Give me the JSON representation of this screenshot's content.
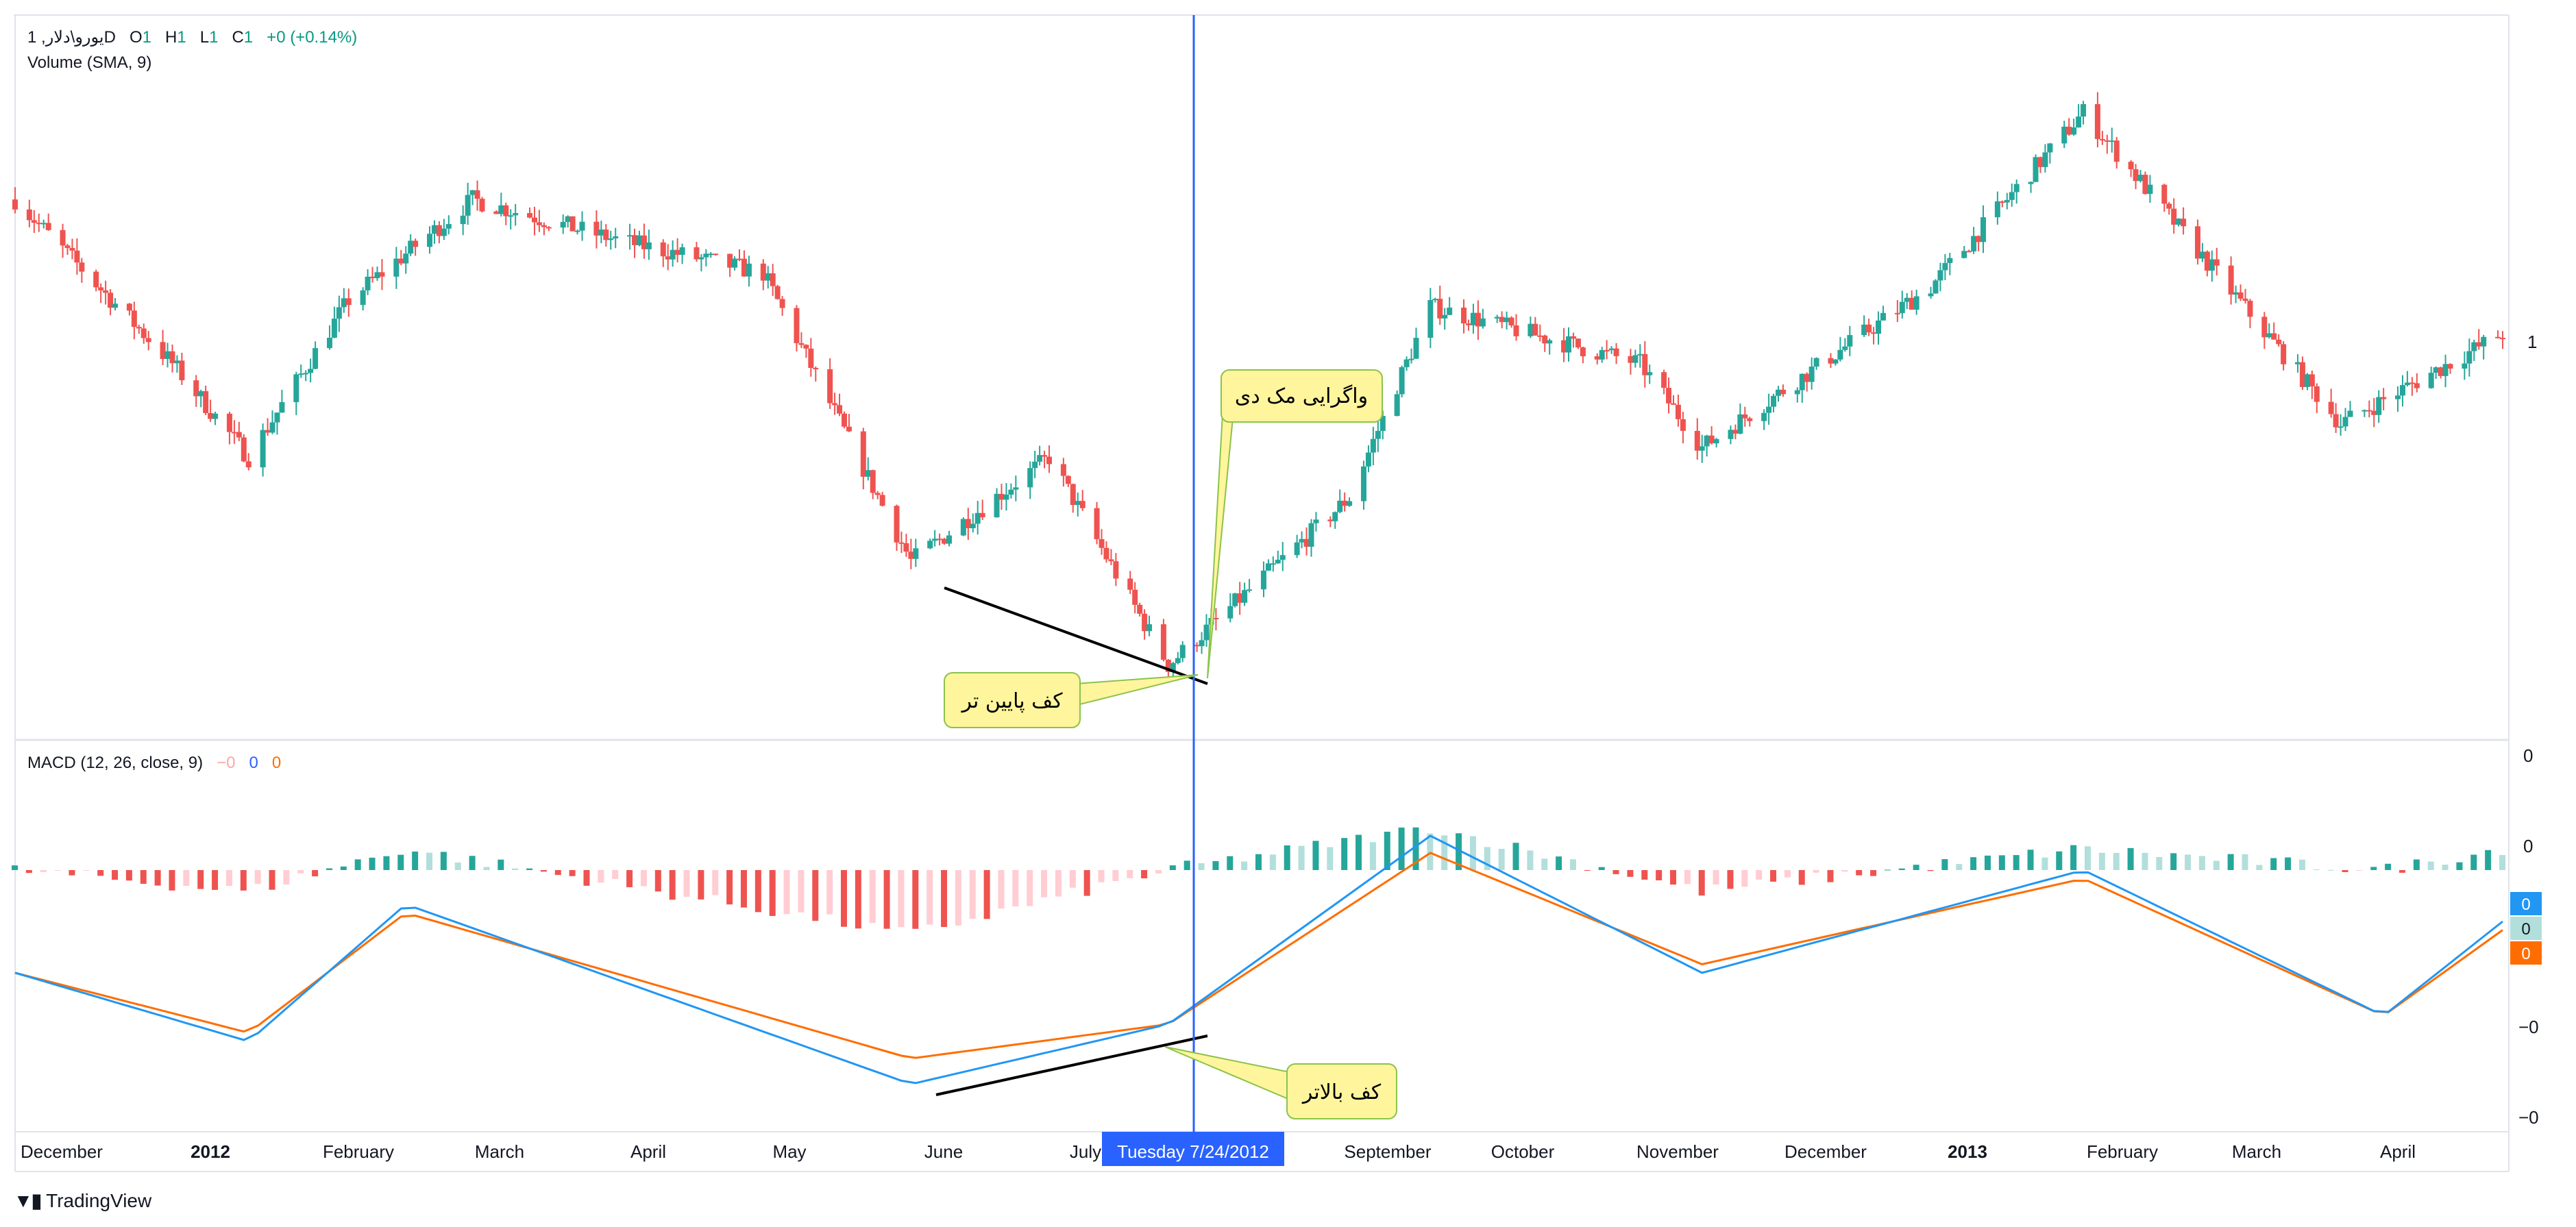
{
  "header": {
    "symbol": "یورو\\دلار, 1D",
    "o_label": "O",
    "o_value": "1",
    "h_label": "H",
    "h_value": "1",
    "l_label": "L",
    "l_value": "1",
    "c_label": "C",
    "c_value": "1",
    "change": "+0 (+0.14%)",
    "volume_label": "Volume (SMA, 9)"
  },
  "macd_legend": {
    "label": "MACD (12, 26, close, 9)",
    "hist_value": "−0",
    "macd_value": "0",
    "signal_value": "0"
  },
  "price_axis": {
    "last_label": "1"
  },
  "macd_axis": {
    "labels": [
      "0",
      "0",
      "−0",
      "−0"
    ]
  },
  "macd_tags": [
    {
      "value": "0",
      "color": "#2196f3"
    },
    {
      "value": "0",
      "color": "#b2dfdb"
    },
    {
      "value": "0",
      "color": "#ff6d00"
    }
  ],
  "crosshair": {
    "date_label": "Tuesday 7/24/2012"
  },
  "x_axis": {
    "labels": [
      {
        "text": "December",
        "bold": false
      },
      {
        "text": "2012",
        "bold": true
      },
      {
        "text": "February",
        "bold": false
      },
      {
        "text": "March",
        "bold": false
      },
      {
        "text": "April",
        "bold": false
      },
      {
        "text": "May",
        "bold": false
      },
      {
        "text": "June",
        "bold": false
      },
      {
        "text": "July",
        "bold": false
      },
      {
        "text": "September",
        "bold": false
      },
      {
        "text": "October",
        "bold": false
      },
      {
        "text": "November",
        "bold": false
      },
      {
        "text": "December",
        "bold": false
      },
      {
        "text": "2013",
        "bold": true
      },
      {
        "text": "February",
        "bold": false
      },
      {
        "text": "March",
        "bold": false
      },
      {
        "text": "April",
        "bold": false
      }
    ]
  },
  "annotations": {
    "divergence": "واگرایی مک دی",
    "lower_low": "کف پایین  تر",
    "higher_low": "کف بالاتر"
  },
  "brand": {
    "name": "TradingView"
  },
  "colors": {
    "up": "#26a69a",
    "down": "#ef5350",
    "hist_up_strong": "#26a69a",
    "hist_up_weak": "#b2dfdb",
    "hist_down_strong": "#ef5350",
    "hist_down_weak": "#ffcdd2",
    "macd_line": "#2196f3",
    "signal_line": "#ff6d00",
    "crosshair": "#2962ff",
    "callout_fill": "#fff59d",
    "callout_border": "#8bc34a"
  },
  "chart_data": {
    "type": "candlestick",
    "panes": [
      "price",
      "MACD (12, 26, close, 9)"
    ],
    "x_range": [
      "2011-11",
      "2013-04"
    ],
    "price_trend": [
      {
        "x": "2011-11-25",
        "y": 1.345
      },
      {
        "x": "2011-12-28",
        "y": 1.296
      },
      {
        "x": "2012-01-13",
        "y": 1.268
      },
      {
        "x": "2012-02-03",
        "y": 1.315
      },
      {
        "x": "2012-02-29",
        "y": 1.345
      },
      {
        "x": "2012-03-30",
        "y": 1.333
      },
      {
        "x": "2012-04-30",
        "y": 1.323
      },
      {
        "x": "2012-05-31",
        "y": 1.237
      },
      {
        "x": "2012-06-29",
        "y": 1.268
      },
      {
        "x": "2012-07-24",
        "y": 1.206
      },
      {
        "x": "2012-08-31",
        "y": 1.256
      },
      {
        "x": "2012-09-17",
        "y": 1.313
      },
      {
        "x": "2012-10-31",
        "y": 1.296
      },
      {
        "x": "2012-11-13",
        "y": 1.271
      },
      {
        "x": "2012-12-31",
        "y": 1.319
      },
      {
        "x": "2013-02-01",
        "y": 1.371
      },
      {
        "x": "2013-03-27",
        "y": 1.278
      },
      {
        "x": "2013-04-30",
        "y": 1.305
      }
    ],
    "macd_trend": [
      {
        "x": "2011-11-25",
        "macd": -0.004,
        "signal": -0.004
      },
      {
        "x": "2012-01-13",
        "macd": -0.012,
        "signal": -0.011
      },
      {
        "x": "2012-02-15",
        "macd": 0.004,
        "signal": 0.003
      },
      {
        "x": "2012-05-31",
        "macd": -0.017,
        "signal": -0.014
      },
      {
        "x": "2012-07-24",
        "macd": -0.01,
        "signal": -0.01
      },
      {
        "x": "2012-09-17",
        "macd": 0.012,
        "signal": 0.01
      },
      {
        "x": "2012-11-13",
        "macd": -0.004,
        "signal": -0.003
      },
      {
        "x": "2013-02-01",
        "macd": 0.008,
        "signal": 0.007
      },
      {
        "x": "2013-04-05",
        "macd": -0.009,
        "signal": -0.009
      },
      {
        "x": "2013-04-30",
        "macd": 0.002,
        "signal": 0.001
      }
    ],
    "crosshair_date": "2012-07-24",
    "annotations": [
      {
        "text": "واگرایی مک دی",
        "target": "2012-07-24"
      },
      {
        "text": "کف پایین  تر",
        "pane": "price",
        "from": "2012-05-31",
        "to": "2012-07-24"
      },
      {
        "text": "کف بالاتر",
        "pane": "MACD",
        "from": "2012-05-31",
        "to": "2012-07-24"
      }
    ],
    "grid": false,
    "legend": "top-left"
  }
}
